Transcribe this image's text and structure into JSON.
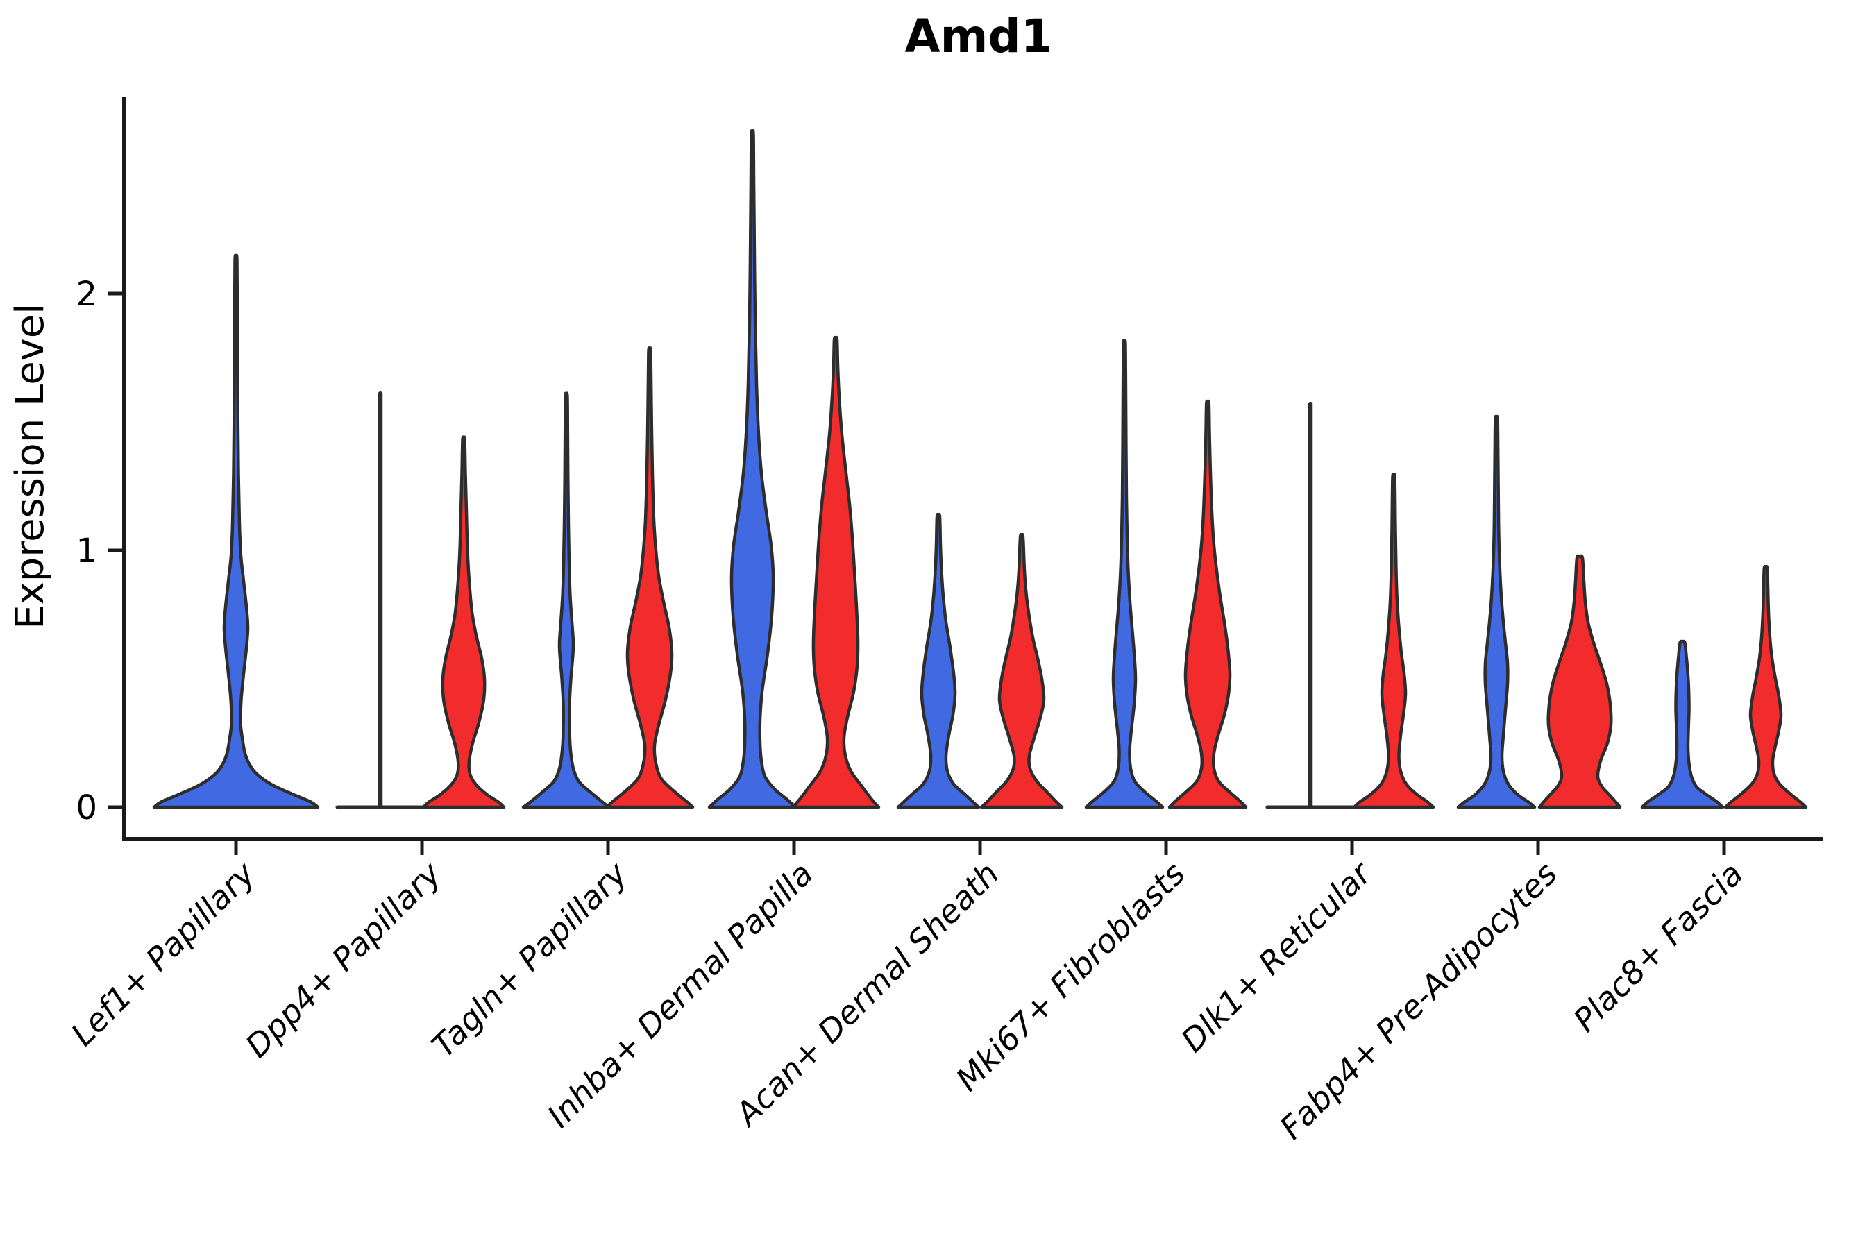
{
  "page": {
    "background": "#ffffff"
  },
  "style": {
    "violin_outline": "#2d2d2d",
    "axis_color": "#1a1a1a",
    "blue": "#4169E1",
    "red": "#F22C2C"
  },
  "chart_data": {
    "type": "violin",
    "title": "Amd1",
    "ylabel": "Expression Level",
    "xlabel": "",
    "yticks": [
      0,
      1,
      2
    ],
    "ylim": [
      -0.12,
      2.77
    ],
    "grid": false,
    "legend_position": "none",
    "series": [
      {
        "name": "blue",
        "color": "#4169E1"
      },
      {
        "name": "red",
        "color": "#F22C2C"
      }
    ],
    "categories": [
      "Lef1+ Papillary",
      "Dpp4+ Papillary",
      "Tagln+ Papillary",
      "Inhba+ Dermal Papilla",
      "Acan+ Dermal Sheath",
      "Mki67+ Fibroblasts",
      "Dlk1+ Reticular",
      "Fabp4+ Pre-Adipocytes",
      "Plac8+ Fascia"
    ],
    "violins": [
      {
        "category": "Lef1+ Papillary",
        "series": "blue",
        "offset": 0,
        "max": 2.13,
        "shape": "violin",
        "profile": [
          [
            0,
            118
          ],
          [
            0.02,
            108
          ],
          [
            0.05,
            82
          ],
          [
            0.09,
            50
          ],
          [
            0.14,
            26
          ],
          [
            0.2,
            14
          ],
          [
            0.27,
            9
          ],
          [
            0.33,
            6.5
          ],
          [
            0.42,
            7.5
          ],
          [
            0.52,
            11
          ],
          [
            0.62,
            15
          ],
          [
            0.7,
            17
          ],
          [
            0.78,
            15
          ],
          [
            0.88,
            11
          ],
          [
            0.98,
            7
          ],
          [
            1.1,
            5
          ],
          [
            1.3,
            3.5
          ],
          [
            1.6,
            2.5
          ],
          [
            1.9,
            2
          ],
          [
            2.13,
            1.5
          ]
        ]
      },
      {
        "category": "Dpp4+ Papillary",
        "series": "blue",
        "offset": -60,
        "max": 1.61,
        "shape": "spike",
        "base_half": 62
      },
      {
        "category": "Dpp4+ Papillary",
        "series": "red",
        "offset": 60,
        "max": 1.43,
        "shape": "violin",
        "profile": [
          [
            0,
            58
          ],
          [
            0.02,
            50
          ],
          [
            0.05,
            33
          ],
          [
            0.09,
            17
          ],
          [
            0.13,
            9
          ],
          [
            0.18,
            8
          ],
          [
            0.25,
            13
          ],
          [
            0.33,
            22
          ],
          [
            0.42,
            29
          ],
          [
            0.5,
            30
          ],
          [
            0.58,
            26
          ],
          [
            0.67,
            18
          ],
          [
            0.76,
            12
          ],
          [
            0.88,
            8
          ],
          [
            1.0,
            5.5
          ],
          [
            1.15,
            4
          ],
          [
            1.3,
            2.5
          ],
          [
            1.43,
            1.5
          ]
        ]
      },
      {
        "category": "Tagln+ Papillary",
        "series": "blue",
        "offset": -60,
        "max": 1.6,
        "shape": "violin",
        "profile": [
          [
            0,
            62
          ],
          [
            0.02,
            52
          ],
          [
            0.06,
            34
          ],
          [
            0.1,
            18
          ],
          [
            0.15,
            10
          ],
          [
            0.22,
            6
          ],
          [
            0.3,
            4.5
          ],
          [
            0.4,
            4.5
          ],
          [
            0.5,
            6.5
          ],
          [
            0.58,
            9
          ],
          [
            0.64,
            10
          ],
          [
            0.72,
            8
          ],
          [
            0.82,
            5.5
          ],
          [
            0.95,
            4
          ],
          [
            1.1,
            3
          ],
          [
            1.3,
            2.2
          ],
          [
            1.47,
            1.8
          ],
          [
            1.6,
            1.4
          ]
        ]
      },
      {
        "category": "Tagln+ Papillary",
        "series": "red",
        "offset": 60,
        "max": 1.77,
        "shape": "violin",
        "profile": [
          [
            0,
            62
          ],
          [
            0.02,
            54
          ],
          [
            0.06,
            36
          ],
          [
            0.11,
            17
          ],
          [
            0.17,
            9
          ],
          [
            0.24,
            7
          ],
          [
            0.32,
            13
          ],
          [
            0.42,
            23
          ],
          [
            0.52,
            30
          ],
          [
            0.6,
            32
          ],
          [
            0.7,
            28
          ],
          [
            0.8,
            20
          ],
          [
            0.9,
            13
          ],
          [
            1.0,
            9
          ],
          [
            1.12,
            6
          ],
          [
            1.3,
            4
          ],
          [
            1.55,
            2.5
          ],
          [
            1.77,
            1.6
          ]
        ]
      },
      {
        "category": "Inhba+ Dermal Papilla",
        "series": "blue",
        "offset": -60,
        "max": 2.62,
        "shape": "violin",
        "profile": [
          [
            0,
            62
          ],
          [
            0.03,
            50
          ],
          [
            0.07,
            32
          ],
          [
            0.12,
            18
          ],
          [
            0.18,
            13
          ],
          [
            0.25,
            11
          ],
          [
            0.34,
            11
          ],
          [
            0.45,
            14
          ],
          [
            0.6,
            22
          ],
          [
            0.75,
            28
          ],
          [
            0.9,
            30
          ],
          [
            1.02,
            27
          ],
          [
            1.15,
            20
          ],
          [
            1.3,
            13
          ],
          [
            1.45,
            9
          ],
          [
            1.65,
            6
          ],
          [
            1.9,
            4
          ],
          [
            2.2,
            2.8
          ],
          [
            2.45,
            2
          ],
          [
            2.62,
            1.5
          ]
        ]
      },
      {
        "category": "Inhba+ Dermal Papilla",
        "series": "red",
        "offset": 60,
        "max": 1.82,
        "shape": "violin",
        "profile": [
          [
            0,
            62
          ],
          [
            0.03,
            52
          ],
          [
            0.08,
            38
          ],
          [
            0.14,
            22
          ],
          [
            0.2,
            14
          ],
          [
            0.27,
            12
          ],
          [
            0.35,
            17
          ],
          [
            0.45,
            26
          ],
          [
            0.55,
            31
          ],
          [
            0.65,
            32
          ],
          [
            0.78,
            30
          ],
          [
            0.92,
            27
          ],
          [
            1.05,
            24
          ],
          [
            1.18,
            20
          ],
          [
            1.3,
            15
          ],
          [
            1.45,
            9
          ],
          [
            1.6,
            5
          ],
          [
            1.72,
            3
          ],
          [
            1.82,
            2
          ]
        ]
      },
      {
        "category": "Acan+ Dermal Sheath",
        "series": "blue",
        "offset": -60,
        "max": 1.13,
        "shape": "violin",
        "profile": [
          [
            0,
            58
          ],
          [
            0.02,
            50
          ],
          [
            0.05,
            38
          ],
          [
            0.09,
            22
          ],
          [
            0.14,
            13
          ],
          [
            0.2,
            11
          ],
          [
            0.28,
            15
          ],
          [
            0.36,
            21
          ],
          [
            0.44,
            24
          ],
          [
            0.52,
            22
          ],
          [
            0.62,
            17
          ],
          [
            0.72,
            11
          ],
          [
            0.82,
            7
          ],
          [
            0.92,
            4.5
          ],
          [
            1.02,
            3
          ],
          [
            1.13,
            2
          ]
        ]
      },
      {
        "category": "Acan+ Dermal Sheath",
        "series": "red",
        "offset": 60,
        "max": 1.05,
        "shape": "violin",
        "profile": [
          [
            0,
            58
          ],
          [
            0.02,
            50
          ],
          [
            0.06,
            36
          ],
          [
            0.1,
            22
          ],
          [
            0.15,
            12
          ],
          [
            0.2,
            11
          ],
          [
            0.27,
            18
          ],
          [
            0.35,
            27
          ],
          [
            0.42,
            32
          ],
          [
            0.5,
            29
          ],
          [
            0.58,
            23
          ],
          [
            0.66,
            16
          ],
          [
            0.74,
            11
          ],
          [
            0.82,
            7
          ],
          [
            0.92,
            4
          ],
          [
            1.05,
            2
          ]
        ]
      },
      {
        "category": "Mki67+ Fibroblasts",
        "series": "blue",
        "offset": -60,
        "max": 1.8,
        "shape": "violin",
        "profile": [
          [
            0,
            55
          ],
          [
            0.02,
            47
          ],
          [
            0.06,
            29
          ],
          [
            0.1,
            15
          ],
          [
            0.15,
            9
          ],
          [
            0.22,
            7.5
          ],
          [
            0.3,
            10
          ],
          [
            0.4,
            14
          ],
          [
            0.5,
            16
          ],
          [
            0.6,
            14
          ],
          [
            0.7,
            11
          ],
          [
            0.8,
            8
          ],
          [
            0.92,
            5.5
          ],
          [
            1.05,
            4
          ],
          [
            1.2,
            3
          ],
          [
            1.4,
            2.4
          ],
          [
            1.6,
            2
          ],
          [
            1.8,
            1.5
          ]
        ]
      },
      {
        "category": "Mki67+ Fibroblasts",
        "series": "red",
        "offset": 60,
        "max": 1.57,
        "shape": "violin",
        "profile": [
          [
            0,
            55
          ],
          [
            0.02,
            48
          ],
          [
            0.06,
            31
          ],
          [
            0.1,
            16
          ],
          [
            0.15,
            9
          ],
          [
            0.21,
            9
          ],
          [
            0.28,
            15
          ],
          [
            0.36,
            24
          ],
          [
            0.44,
            30
          ],
          [
            0.52,
            32
          ],
          [
            0.62,
            29
          ],
          [
            0.72,
            24
          ],
          [
            0.82,
            18
          ],
          [
            0.92,
            13
          ],
          [
            1.02,
            9
          ],
          [
            1.15,
            6
          ],
          [
            1.3,
            4
          ],
          [
            1.45,
            2.6
          ],
          [
            1.57,
            1.8
          ]
        ]
      },
      {
        "category": "Dlk1+ Reticular",
        "series": "blue",
        "offset": -60,
        "max": 1.57,
        "shape": "spike",
        "base_half": 62
      },
      {
        "category": "Dlk1+ Reticular",
        "series": "red",
        "offset": 60,
        "max": 1.28,
        "shape": "violin",
        "profile": [
          [
            0,
            57
          ],
          [
            0.02,
            49
          ],
          [
            0.05,
            33
          ],
          [
            0.09,
            18
          ],
          [
            0.14,
            10
          ],
          [
            0.2,
            7.5
          ],
          [
            0.28,
            10
          ],
          [
            0.36,
            14
          ],
          [
            0.44,
            17
          ],
          [
            0.52,
            15
          ],
          [
            0.6,
            11
          ],
          [
            0.7,
            7.5
          ],
          [
            0.8,
            5
          ],
          [
            0.92,
            3.5
          ],
          [
            1.08,
            2.5
          ],
          [
            1.28,
            1.6
          ]
        ]
      },
      {
        "category": "Fabp4+ Pre-Adipocytes",
        "series": "blue",
        "offset": -60,
        "max": 1.51,
        "shape": "violin",
        "profile": [
          [
            0,
            55
          ],
          [
            0.02,
            46
          ],
          [
            0.05,
            30
          ],
          [
            0.09,
            17
          ],
          [
            0.14,
            10
          ],
          [
            0.2,
            8
          ],
          [
            0.28,
            10
          ],
          [
            0.38,
            13
          ],
          [
            0.48,
            16
          ],
          [
            0.56,
            16
          ],
          [
            0.64,
            13
          ],
          [
            0.72,
            10
          ],
          [
            0.82,
            7
          ],
          [
            0.92,
            5
          ],
          [
            1.05,
            3.5
          ],
          [
            1.2,
            2.8
          ],
          [
            1.38,
            2.2
          ],
          [
            1.51,
            1.6
          ]
        ]
      },
      {
        "category": "Fabp4+ Pre-Adipocytes",
        "series": "red",
        "offset": 60,
        "max": 0.97,
        "shape": "violin",
        "profile": [
          [
            0,
            58
          ],
          [
            0.02,
            52
          ],
          [
            0.05,
            42
          ],
          [
            0.08,
            32
          ],
          [
            0.12,
            26
          ],
          [
            0.18,
            30
          ],
          [
            0.25,
            40
          ],
          [
            0.32,
            45
          ],
          [
            0.4,
            44
          ],
          [
            0.48,
            39
          ],
          [
            0.56,
            30
          ],
          [
            0.64,
            20
          ],
          [
            0.72,
            12
          ],
          [
            0.8,
            8
          ],
          [
            0.88,
            6
          ],
          [
            0.97,
            4
          ]
        ]
      },
      {
        "category": "Plac8+ Fascia",
        "series": "blue",
        "offset": -60,
        "max": 0.64,
        "shape": "violin",
        "profile": [
          [
            0,
            58
          ],
          [
            0.02,
            50
          ],
          [
            0.05,
            34
          ],
          [
            0.08,
            20
          ],
          [
            0.12,
            13
          ],
          [
            0.17,
            9.5
          ],
          [
            0.23,
            8
          ],
          [
            0.3,
            8.5
          ],
          [
            0.38,
            9.5
          ],
          [
            0.46,
            9
          ],
          [
            0.53,
            7.5
          ],
          [
            0.59,
            5.5
          ],
          [
            0.64,
            3.5
          ]
        ]
      },
      {
        "category": "Plac8+ Fascia",
        "series": "red",
        "offset": 60,
        "max": 0.93,
        "shape": "violin",
        "profile": [
          [
            0,
            58
          ],
          [
            0.02,
            50
          ],
          [
            0.05,
            36
          ],
          [
            0.09,
            20
          ],
          [
            0.13,
            12
          ],
          [
            0.18,
            10
          ],
          [
            0.24,
            14
          ],
          [
            0.3,
            19
          ],
          [
            0.36,
            22
          ],
          [
            0.43,
            19
          ],
          [
            0.5,
            14
          ],
          [
            0.58,
            9
          ],
          [
            0.66,
            6
          ],
          [
            0.76,
            4
          ],
          [
            0.86,
            3
          ],
          [
            0.93,
            2.2
          ]
        ]
      }
    ]
  }
}
